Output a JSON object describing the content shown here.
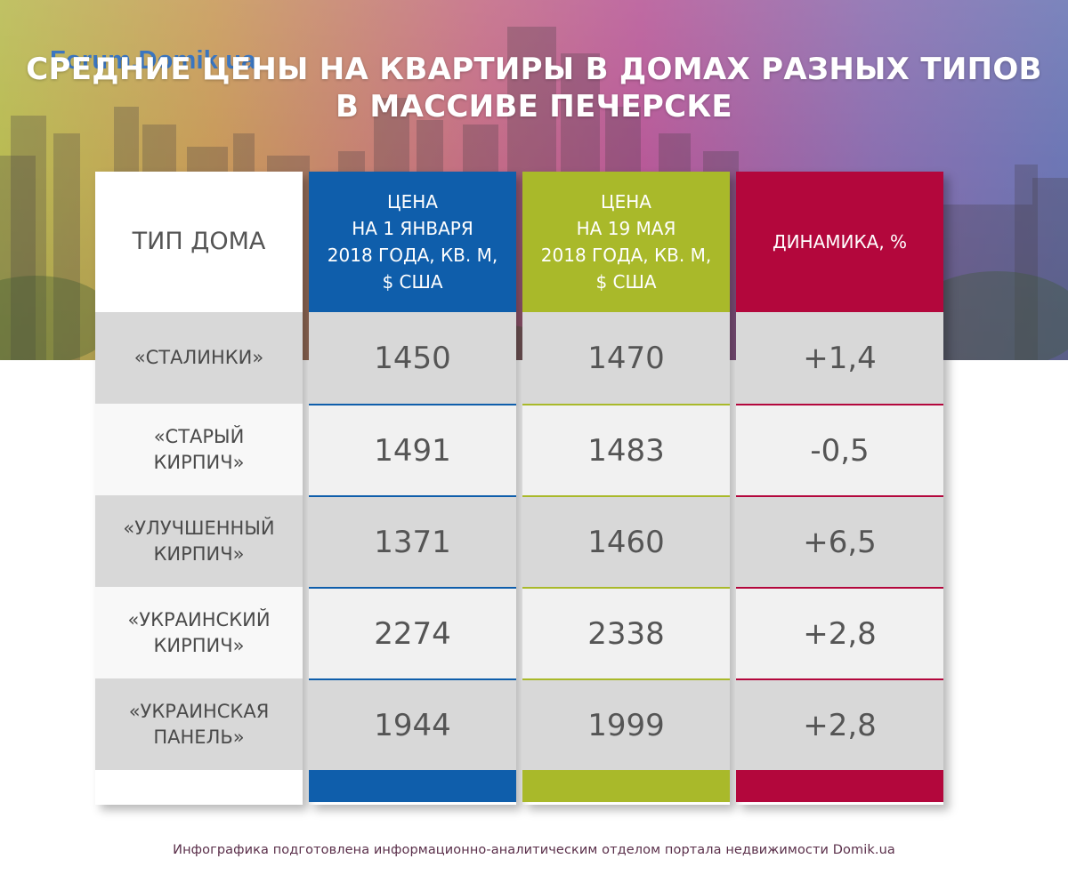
{
  "logo": {
    "text": "Forum.Domik.ua"
  },
  "title": {
    "line1": "СРЕДНИЕ ЦЕНЫ НА КВАРТИРЫ В ДОМАХ РАЗНЫХ ТИПОВ",
    "line2": "В МАССИВЕ ПЕЧЕРСКЕ"
  },
  "colors": {
    "blue": "#0f5eab",
    "olive": "#a9b92a",
    "crimson": "#b3073c",
    "cell_dark": "#d8d8d8",
    "cell_light": "#f1f1f1"
  },
  "chart_data": {
    "type": "table",
    "title": "СРЕДНИЕ ЦЕНЫ НА КВАРТИРЫ В ДОМАХ РАЗНЫХ ТИПОВ В МАССИВЕ ПЕЧЕРСКЕ",
    "columns": [
      {
        "lines": [
          "ТИП ДОМА"
        ]
      },
      {
        "lines": [
          "ЦЕНА",
          "НА 1 ЯНВАРЯ",
          "2018 ГОДА, КВ. М,",
          "$ США"
        ]
      },
      {
        "lines": [
          "ЦЕНА",
          "НА 19 МАЯ",
          "2018 ГОДА, КВ. М,",
          "$ США"
        ]
      },
      {
        "lines": [
          "ДИНАМИКА, %"
        ]
      }
    ],
    "rows": [
      {
        "type_lines": [
          "«СТАЛИНКИ»"
        ],
        "price_jan": "1450",
        "price_may": "1470",
        "change": "+1,4"
      },
      {
        "type_lines": [
          "«СТАРЫЙ",
          "КИРПИЧ»"
        ],
        "price_jan": "1491",
        "price_may": "1483",
        "change": "-0,5"
      },
      {
        "type_lines": [
          "«УЛУЧШЕННЫЙ",
          "КИРПИЧ»"
        ],
        "price_jan": "1371",
        "price_may": "1460",
        "change": "+6,5"
      },
      {
        "type_lines": [
          "«УКРАИНСКИЙ",
          "КИРПИЧ»"
        ],
        "price_jan": "2274",
        "price_may": "2338",
        "change": "+2,8"
      },
      {
        "type_lines": [
          "«УКРАИНСКАЯ",
          "ПАНЕЛЬ»"
        ],
        "price_jan": "1944",
        "price_may": "1999",
        "change": "+2,8"
      }
    ]
  },
  "footer": {
    "text": "Инфографика подготовлена информационно-аналитическим отделом портала недвижимости Domik.ua"
  }
}
